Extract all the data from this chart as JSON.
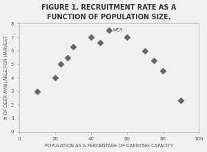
{
  "title": "FIGURE 1. RECRUITMENT RATE AS A\nFUNCTION OF POPULATION SIZE.",
  "xlabel": "POPULATION AS A PERCENTAGE OF CARRYING CAPACITY",
  "ylabel": "# OF DEER AVAILABLE FOR HARVEST",
  "x": [
    10,
    20,
    23,
    27,
    30,
    40,
    45,
    60,
    70,
    75,
    80,
    90
  ],
  "y": [
    3.0,
    4.0,
    5.0,
    5.5,
    6.3,
    7.0,
    6.6,
    7.0,
    6.0,
    5.3,
    4.5,
    2.3
  ],
  "msy_x": 50,
  "msy_y": 7.5,
  "msy_label": "MSY",
  "xlim": [
    0,
    100
  ],
  "ylim": [
    0,
    8
  ],
  "xticks": [
    0,
    20,
    40,
    60,
    80,
    100
  ],
  "yticks": [
    0,
    1,
    2,
    3,
    4,
    5,
    6,
    7,
    8
  ],
  "marker": "D",
  "marker_color": "#666666",
  "marker_size": 4,
  "bg_color": "#f0f0f0",
  "plot_bg_color": "#f0f0f0",
  "title_fontsize": 7.0,
  "axis_label_fontsize": 4.8,
  "tick_fontsize": 5.0,
  "annotation_fontsize": 5.0,
  "title_color": "#333333",
  "label_color": "#555555",
  "spine_color": "#aaaaaa"
}
